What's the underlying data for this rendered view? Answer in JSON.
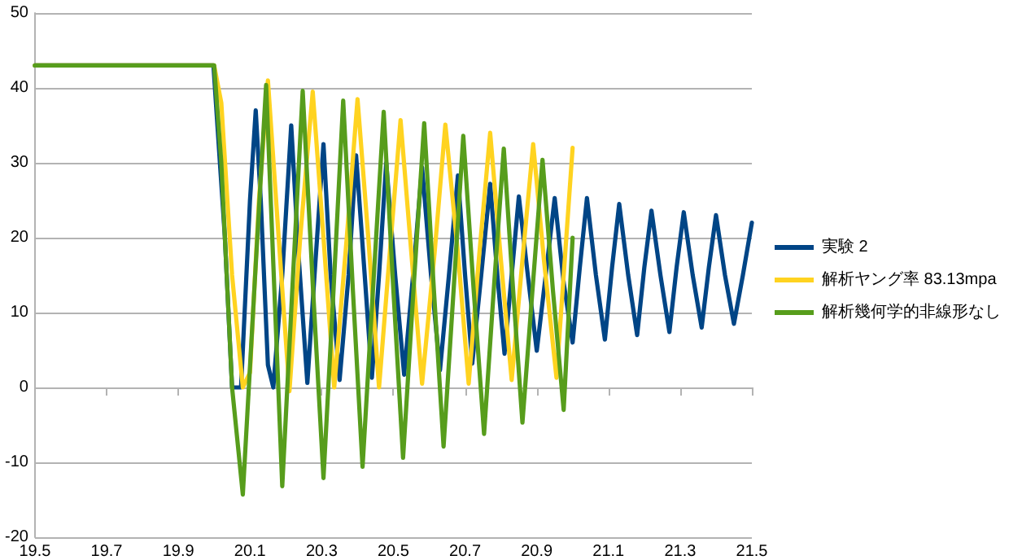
{
  "chart_data": {
    "type": "line",
    "xlim": [
      19.5,
      21.5
    ],
    "xticks": [
      19.5,
      19.7,
      19.9,
      20.1,
      20.3,
      20.5,
      20.7,
      20.9,
      21.1,
      21.3,
      21.5
    ],
    "ylim": [
      -20,
      50
    ],
    "yticks": [
      -20,
      -10,
      0,
      10,
      20,
      30,
      40,
      50
    ],
    "grid": "y",
    "legend": "right",
    "marker": "none",
    "line_style": "solid",
    "series": [
      {
        "name": "実験 2",
        "color": "#004586",
        "x": [
          19.5,
          19.998,
          20.03,
          20.05,
          20.075,
          20.1,
          20.116,
          20.13,
          20.15,
          20.165,
          20.19,
          20.215,
          20.235,
          20.26,
          20.28,
          20.305,
          20.325,
          20.35,
          20.375,
          20.396,
          20.42,
          20.44,
          20.46,
          20.48,
          20.505,
          20.53,
          20.555,
          20.58,
          20.605,
          20.63,
          20.655,
          20.68,
          20.7,
          20.72,
          20.745,
          20.77,
          20.79,
          20.81,
          20.83,
          20.85,
          20.875,
          20.9,
          20.925,
          20.95,
          20.975,
          21.0,
          21.02,
          21.04,
          21.065,
          21.09,
          21.11,
          21.13,
          21.155,
          21.18,
          21.2,
          21.22,
          21.245,
          21.27,
          21.29,
          21.31,
          21.335,
          21.36,
          21.38,
          21.4,
          21.425,
          21.45,
          21.475,
          21.5
        ],
        "values": [
          43,
          43,
          20,
          0,
          0,
          25,
          37,
          25,
          3,
          0,
          15,
          35,
          18,
          0.6,
          15,
          32.5,
          15,
          1,
          15,
          31,
          15,
          1.3,
          15,
          30,
          15,
          1.7,
          15,
          29.4,
          15,
          2.3,
          15,
          28.3,
          15,
          3.2,
          15,
          27.2,
          15,
          4.5,
          15,
          25.5,
          15,
          4.9,
          15,
          25.3,
          14,
          6,
          16,
          25.3,
          15,
          6.4,
          16,
          24.5,
          15,
          7,
          16,
          23.6,
          15,
          7.4,
          16,
          23.4,
          15,
          8,
          16,
          23,
          15,
          8.5,
          15,
          22
        ]
      },
      {
        "name": "解析ヤング率 83.13mpa",
        "color": "#ffd320",
        "x": [
          19.5,
          20.0,
          20.02,
          20.05,
          20.08,
          20.1,
          20.125,
          20.15,
          20.18,
          20.21,
          20.24,
          20.275,
          20.305,
          20.335,
          20.37,
          20.4,
          20.43,
          20.46,
          20.49,
          20.52,
          20.55,
          20.58,
          20.615,
          20.645,
          20.68,
          20.71,
          20.74,
          20.77,
          20.8,
          20.83,
          20.86,
          20.89,
          20.92,
          20.955,
          21.0
        ],
        "values": [
          43,
          43,
          38,
          15,
          0,
          2,
          25,
          41,
          20,
          -0.5,
          20,
          39.5,
          20,
          0,
          20,
          38.5,
          20,
          0,
          18,
          35.7,
          18,
          0.5,
          18,
          35.1,
          18,
          0.5,
          18,
          34,
          17,
          1,
          17,
          32.5,
          17,
          1.3,
          32
        ]
      },
      {
        "name": "解析幾何学的非線形なし",
        "color": "#579d1c",
        "x": [
          19.5,
          20.0,
          20.02,
          20.05,
          20.08,
          20.112,
          20.145,
          20.168,
          20.19,
          20.218,
          20.247,
          20.276,
          20.305,
          20.333,
          20.36,
          20.387,
          20.414,
          20.443,
          20.473,
          20.5,
          20.527,
          20.556,
          20.586,
          20.613,
          20.64,
          20.668,
          20.695,
          20.724,
          20.753,
          20.78,
          20.808,
          20.834,
          20.86,
          20.888,
          20.916,
          20.945,
          20.975,
          21.0
        ],
        "values": [
          43,
          43,
          30,
          0,
          -14.3,
          13,
          40.4,
          13,
          -13.2,
          13,
          39.6,
          13,
          -12.1,
          13,
          38.3,
          13,
          -10.6,
          13,
          36.8,
          13,
          -9.4,
          13,
          35.3,
          13,
          -7.9,
          13,
          33.6,
          13,
          -6.2,
          13,
          31.9,
          13,
          -4.7,
          13,
          30.4,
          13,
          -3,
          20
        ]
      }
    ]
  }
}
